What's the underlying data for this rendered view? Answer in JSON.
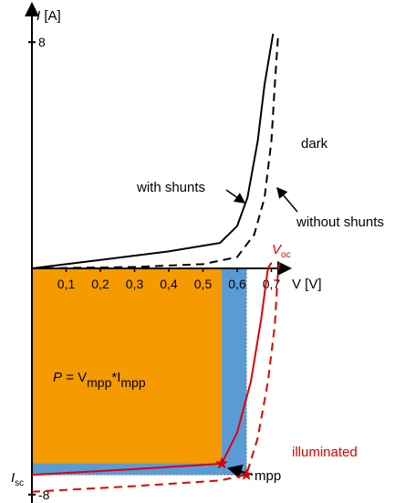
{
  "chart_data": {
    "type": "iv-curve",
    "xlabel": "V [V]",
    "ylabel": {
      "symbol": "I",
      "unit": "[A]"
    },
    "xlim": [
      0,
      1.04
    ],
    "ylim": [
      -8.2,
      9.2
    ],
    "xticks": [
      {
        "value": 0.1,
        "label": "0,1"
      },
      {
        "value": 0.2,
        "label": "0,2"
      },
      {
        "value": 0.3,
        "label": "0,3"
      },
      {
        "value": 0.4,
        "label": "0,4"
      },
      {
        "value": 0.5,
        "label": "0,5"
      },
      {
        "value": 0.6,
        "label": "0,6"
      },
      {
        "value": 0.7,
        "label": "0,7"
      }
    ],
    "yticks": [
      8,
      -8
    ],
    "series": [
      {
        "name": "with shunts",
        "color": "#000000",
        "dashed": false,
        "x": [
          0,
          0.2,
          0.4,
          0.55,
          0.6,
          0.63,
          0.66,
          0.68,
          0.705
        ],
        "values": [
          0,
          0.3,
          0.6,
          0.9,
          1.5,
          2.5,
          4.5,
          6.5,
          8.3
        ]
      },
      {
        "name": "without shunts",
        "color": "#000000",
        "dashed": true,
        "x": [
          0,
          0.3,
          0.5,
          0.6,
          0.65,
          0.68,
          0.7,
          0.71,
          0.72
        ],
        "values": [
          0,
          0.05,
          0.15,
          0.4,
          1.2,
          2.5,
          4.5,
          6.5,
          8.3
        ]
      },
      {
        "color": "#e00000",
        "dashed": false,
        "x": [
          0,
          0.3,
          0.5,
          0.555,
          0.6,
          0.64,
          0.67,
          0.69,
          0.7
        ],
        "values": [
          -7.3,
          -7.1,
          -6.95,
          -6.9,
          -5.8,
          -4,
          -1.8,
          0,
          0.2
        ]
      },
      {
        "color": "#e00000",
        "dashed": true,
        "x": [
          0,
          0.3,
          0.55,
          0.627,
          0.66,
          0.69,
          0.71,
          0.72,
          0.725
        ],
        "values": [
          -7.9,
          -7.7,
          -7.5,
          -7.3,
          -6,
          -4,
          -2,
          0,
          0.2
        ]
      }
    ],
    "mpp": [
      {
        "x": 0.555,
        "value": -6.9,
        "color": "#f59a00"
      },
      {
        "x": 0.627,
        "value": -7.3,
        "color": "#5b9bd5"
      }
    ],
    "annotations": {
      "dark": "dark",
      "illuminated": "illuminated",
      "voc": {
        "symbol": "V",
        "sub": "oc"
      },
      "isc": {
        "symbol": "I",
        "sub": "sc"
      },
      "mpp": "mpp",
      "formula": [
        "P",
        " = V",
        "mpp",
        "*I",
        "mpp"
      ]
    }
  }
}
